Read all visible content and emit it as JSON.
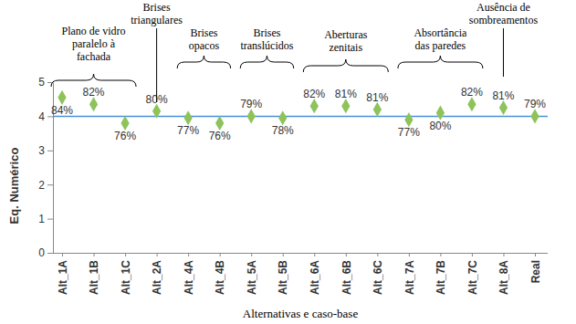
{
  "chart_data": {
    "type": "scatter",
    "x_label": "Alternativas e caso-base",
    "y_label": "Eq. Numérico",
    "categories": [
      "Alt_1A",
      "Alt_1B",
      "Alt_1C",
      "Alt_2A",
      "Alt_4A",
      "Alt_4B",
      "Alt_5A",
      "Alt_5B",
      "Alt_6A",
      "Alt_6B",
      "Alt_6C",
      "Alt_7A",
      "Alt_7B",
      "Alt_7C",
      "Alt_8A",
      "Real"
    ],
    "values": [
      4.55,
      4.35,
      3.8,
      4.15,
      3.95,
      3.8,
      4.0,
      3.95,
      4.3,
      4.3,
      4.2,
      3.9,
      4.1,
      4.35,
      4.25,
      4.0
    ],
    "percent_labels": [
      "84%",
      "82%",
      "76%",
      "80%",
      "77%",
      "76%",
      "79%",
      "78%",
      "82%",
      "81%",
      "81%",
      "77%",
      "80%",
      "82%",
      "81%",
      "79%"
    ],
    "color": "#8dc35a",
    "marker": "diamond",
    "reference_line": {
      "value": 4,
      "color": "#4a90d9"
    },
    "ylim": [
      0,
      5
    ],
    "yticks": [
      0,
      1,
      2,
      3,
      4,
      5
    ],
    "annotations": [
      {
        "text": [
          "Plano de vidro",
          "paralelo à",
          "fachada"
        ],
        "start": "Alt_1A",
        "end": "Alt_1C"
      },
      {
        "text": [
          "Brises",
          "triangulares"
        ],
        "start": "Alt_2A",
        "end": "Alt_2A"
      },
      {
        "text": [
          "Brises",
          "opacos"
        ],
        "start": "Alt_4A",
        "end": "Alt_4B"
      },
      {
        "text": [
          "Brises",
          "translúcidos"
        ],
        "start": "Alt_5A",
        "end": "Alt_5B"
      },
      {
        "text": [
          "Aberturas",
          "zenitais"
        ],
        "start": "Alt_6A",
        "end": "Alt_6C"
      },
      {
        "text": [
          "Absortância",
          "das paredes"
        ],
        "start": "Alt_7A",
        "end": "Alt_7C"
      },
      {
        "text": [
          "Ausência de",
          "sombreamentos"
        ],
        "start": "Alt_8A",
        "end": "Alt_8A"
      }
    ]
  }
}
